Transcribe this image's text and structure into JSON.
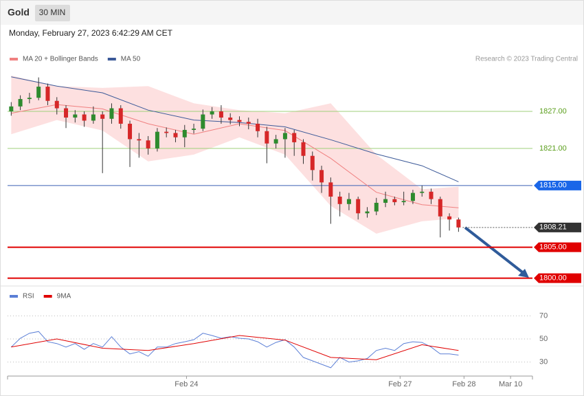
{
  "header": {
    "title": "Gold",
    "interval": "30 MIN",
    "timestamp": "Monday, February 27, 2023 6:42:29 AM CET"
  },
  "chart_data": [
    {
      "type": "candlestick",
      "credit": "Research © 2023 Trading Central",
      "xlim": [
        -0.4,
        57.1
      ],
      "ylim": [
        1799.4,
        1833.9
      ],
      "up_color": "#2e8b2e",
      "down_color": "#d62728",
      "open": [
        1827.0,
        1827.8,
        1829.0,
        1829.2,
        1831.0,
        1828.7,
        1827.5,
        1826.0,
        1826.5,
        1825.5,
        1826.5,
        1825.8,
        1827.5,
        1825.0,
        1822.5,
        1822.3,
        1821.0,
        1823.7,
        1823.5,
        1822.8,
        1824.0,
        1824.2,
        1826.5,
        1827.0,
        1826.0,
        1825.6,
        1825.3,
        1825.0,
        1823.8,
        1821.8,
        1822.5,
        1823.5,
        1822.0,
        1819.8,
        1817.5,
        1815.5,
        1813.2,
        1812.0,
        1812.8,
        1810.5,
        1810.8,
        1812.2,
        1812.8,
        1812.3,
        1812.5,
        1813.8,
        1814.0,
        1812.8,
        1810.0,
        1809.5
      ],
      "high": [
        1828.5,
        1829.6,
        1830.0,
        1832.5,
        1831.5,
        1829.3,
        1828.0,
        1827.2,
        1827.0,
        1827.8,
        1827.0,
        1828.3,
        1828.0,
        1825.5,
        1823.5,
        1823.0,
        1824.3,
        1824.4,
        1824.0,
        1824.8,
        1825.0,
        1827.3,
        1827.7,
        1828.0,
        1826.7,
        1826.2,
        1826.0,
        1825.8,
        1824.5,
        1823.2,
        1824.3,
        1824.0,
        1822.5,
        1820.5,
        1818.2,
        1816.3,
        1814.0,
        1813.8,
        1813.2,
        1811.5,
        1813.0,
        1814.0,
        1813.2,
        1814.0,
        1814.3,
        1815.0,
        1814.5,
        1813.2,
        1810.5,
        1809.8
      ],
      "low": [
        1826.3,
        1827.2,
        1828.3,
        1828.8,
        1828.0,
        1826.5,
        1824.3,
        1825.2,
        1824.5,
        1825.0,
        1817.0,
        1825.0,
        1824.2,
        1818.0,
        1819.5,
        1820.0,
        1820.5,
        1822.8,
        1822.0,
        1821.2,
        1823.4,
        1823.8,
        1825.8,
        1825.0,
        1824.9,
        1824.6,
        1824.1,
        1822.8,
        1818.6,
        1821.0,
        1819.5,
        1819.8,
        1818.5,
        1815.8,
        1813.8,
        1808.8,
        1810.0,
        1811.0,
        1809.5,
        1809.8,
        1810.2,
        1811.5,
        1811.8,
        1811.8,
        1812.0,
        1813.2,
        1812.0,
        1806.6,
        1807.7,
        1807.5
      ],
      "close": [
        1827.8,
        1829.0,
        1829.2,
        1831.0,
        1828.7,
        1827.5,
        1826.0,
        1826.5,
        1825.5,
        1826.5,
        1825.8,
        1827.5,
        1825.0,
        1822.5,
        1822.3,
        1821.0,
        1823.7,
        1823.5,
        1822.8,
        1824.0,
        1824.2,
        1826.5,
        1827.0,
        1826.0,
        1825.6,
        1825.3,
        1825.0,
        1823.8,
        1821.8,
        1822.5,
        1823.5,
        1822.0,
        1819.8,
        1817.5,
        1815.5,
        1813.2,
        1812.0,
        1812.8,
        1810.5,
        1810.8,
        1812.2,
        1812.8,
        1812.3,
        1812.5,
        1813.8,
        1814.0,
        1812.8,
        1810.0,
        1809.5,
        1808.21
      ],
      "series": [
        {
          "name": "MA 20 + Bollinger Bands",
          "color": "#f08080",
          "band_color": "#fde0e0",
          "x": [
            0,
            5,
            10,
            15,
            20,
            25,
            30,
            35,
            40,
            45,
            49
          ],
          "values": [
            1826.7,
            1828.1,
            1827.4,
            1825.0,
            1823.3,
            1825.0,
            1823.9,
            1819.4,
            1813.9,
            1811.9,
            1811.4
          ],
          "upper": [
            1832.8,
            1831.1,
            1830.8,
            1831.1,
            1828.3,
            1827.2,
            1826.7,
            1828.3,
            1820.0,
            1814.4,
            1814.8
          ],
          "lower": [
            1823.3,
            1825.6,
            1823.9,
            1818.9,
            1820.0,
            1822.8,
            1820.0,
            1811.7,
            1807.2,
            1809.2,
            1809.7
          ]
        },
        {
          "name": "MA 50",
          "color": "#3b5998",
          "x": [
            0,
            5,
            10,
            15,
            20,
            25,
            30,
            35,
            40,
            45,
            49
          ],
          "values": [
            1832.6,
            1831.1,
            1830.0,
            1827.2,
            1825.6,
            1825.2,
            1824.5,
            1822.4,
            1820.1,
            1818.2,
            1815.6
          ]
        }
      ],
      "levels": [
        {
          "value": 1827,
          "label": "1827.00",
          "color": "#9fcf7a",
          "text_color": "#5a9e1b"
        },
        {
          "value": 1821,
          "label": "1821.00",
          "color": "#9fcf7a",
          "text_color": "#5a9e1b"
        },
        {
          "value": 1815,
          "label": "1815.00",
          "color": "#3b5fb5",
          "box": "#1a66e8"
        },
        {
          "value": 1808.21,
          "label": "1808.21",
          "color": "#555",
          "box": "#333",
          "style": "dotted"
        },
        {
          "value": 1805,
          "label": "1805.00",
          "color": "#e00000",
          "box": "#e00000"
        },
        {
          "value": 1800,
          "label": "1800.00",
          "color": "#e00000",
          "box": "#e00000"
        }
      ]
    },
    {
      "type": "line",
      "xlim": [
        -0.4,
        57.1
      ],
      "ylim": [
        19,
        90.6
      ],
      "yticks": [
        70,
        50,
        30
      ],
      "xticks": [
        {
          "value": 19.2,
          "label": "Feb 24"
        },
        {
          "value": 42.6,
          "label": "Feb 27"
        },
        {
          "value": 49.6,
          "label": "Feb 28"
        },
        {
          "value": 54.7,
          "label": "Mar 10"
        }
      ],
      "series": [
        {
          "name": "RSI",
          "color": "#5b7fd6",
          "x": [
            0,
            1,
            2,
            3,
            4,
            5,
            6,
            7,
            8,
            9,
            10,
            11,
            12,
            13,
            14,
            15,
            16,
            17,
            18,
            19,
            20,
            21,
            22,
            23,
            24,
            25,
            26,
            27,
            28,
            29,
            30,
            31,
            32,
            33,
            34,
            35,
            36,
            37,
            38,
            39,
            40,
            41,
            42,
            43,
            44,
            45,
            46,
            47,
            48,
            49
          ],
          "values": [
            43,
            50.6,
            55,
            56.5,
            47.6,
            46,
            43,
            46,
            41,
            46,
            43,
            52,
            43,
            37,
            39,
            35,
            43,
            43,
            46,
            47.6,
            49.4,
            55,
            53,
            50.6,
            52,
            50.6,
            50,
            47.6,
            43,
            47,
            49.4,
            43,
            34,
            31,
            28,
            25,
            34,
            30,
            31,
            33,
            40,
            42,
            40,
            46,
            47.6,
            47,
            43,
            37,
            37,
            36
          ]
        },
        {
          "name": "9MA",
          "color": "#e00000",
          "x": [
            0,
            5,
            10,
            15,
            20,
            25,
            30,
            35,
            40,
            45,
            49
          ],
          "values": [
            43,
            50,
            42,
            40,
            46,
            53,
            49,
            34,
            32,
            45,
            40
          ]
        }
      ]
    }
  ]
}
